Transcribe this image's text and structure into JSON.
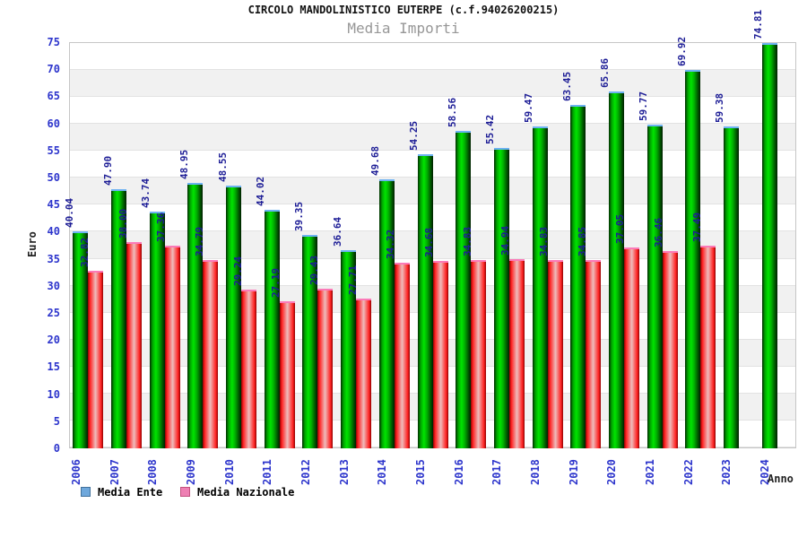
{
  "title": "CIRCOLO MANDOLINISTICO EUTERPE (c.f.94026200215)",
  "subtitle": "Media Importi",
  "chart_data": {
    "type": "bar",
    "title": "CIRCOLO MANDOLINISTICO EUTERPE (c.f.94026200215)",
    "subtitle": "Media Importi",
    "xlabel": "Anno",
    "ylabel": "Euro",
    "ylim": [
      0,
      75
    ],
    "ytick_step": 5,
    "grid": "horizontal-bands",
    "legend_position": "bottom-left",
    "value_labels": "rotated-90-above-bars",
    "categories": [
      "2006",
      "2007",
      "2008",
      "2009",
      "2010",
      "2011",
      "2012",
      "2013",
      "2014",
      "2015",
      "2016",
      "2017",
      "2018",
      "2019",
      "2020",
      "2021",
      "2022",
      "2023",
      "2024"
    ],
    "series": [
      {
        "name": "Media Ente",
        "values": [
          40.04,
          47.9,
          43.74,
          48.95,
          48.55,
          44.02,
          39.35,
          36.64,
          49.68,
          54.25,
          58.56,
          55.42,
          59.47,
          63.45,
          65.86,
          59.77,
          69.92,
          59.38,
          74.81
        ]
      },
      {
        "name": "Media Nazionale",
        "values": [
          32.82,
          38.0,
          37.36,
          34.79,
          29.24,
          27.19,
          29.43,
          27.71,
          34.32,
          34.68,
          34.83,
          34.94,
          34.83,
          34.85,
          37.05,
          36.46,
          37.49,
          null,
          null
        ]
      }
    ]
  },
  "colors": {
    "title_text": "#111111",
    "subtitle_text": "#979797",
    "axis_text": "#2d35cc",
    "value_text": "#1d1d96",
    "band_gray": "#f1f1f1",
    "band_line": "#e2e2e2",
    "plot_border": "#c6c6c6",
    "bar_ente_gradient": [
      "#012c01",
      "#00a300",
      "#00e400",
      "#00b000",
      "#005e00",
      "#001f00"
    ],
    "bar_ente_cap": "#6db2f2",
    "bar_nazionale_gradient": [
      "#8f0000",
      "#ff2222",
      "#eebcbc",
      "#ff2222",
      "#8f0000"
    ],
    "bar_nazionale_cap": "#fb7ab8",
    "legend_ente_fill": "#6fa8dc",
    "legend_ente_border": "#41719c",
    "legend_nazionale_fill": "#ee7fb3",
    "legend_nazionale_border": "#c2517f",
    "axis_title_text": "#222222"
  }
}
